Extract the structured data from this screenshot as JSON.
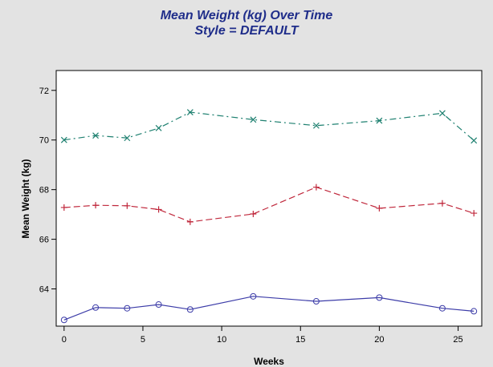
{
  "chart_data": {
    "type": "line",
    "title": [
      "Mean Weight (kg) Over Time",
      "Style = DEFAULT"
    ],
    "xlabel": "Weeks",
    "ylabel": "Mean Weight (kg)",
    "xlim": [
      -0.5,
      26.5
    ],
    "ylim": [
      62.5,
      72.8
    ],
    "xticks": [
      0,
      5,
      10,
      15,
      20,
      25
    ],
    "yticks": [
      64,
      66,
      68,
      70,
      72
    ],
    "grid": false,
    "legend": "none",
    "series": [
      {
        "marker": "circle",
        "line_style": "solid",
        "color": "#3c3ca8",
        "x": [
          0,
          2,
          4,
          6,
          8,
          12,
          16,
          20,
          24,
          26
        ],
        "y": [
          62.75,
          63.25,
          63.22,
          63.37,
          63.17,
          63.7,
          63.5,
          63.65,
          63.22,
          63.1
        ]
      },
      {
        "marker": "plus",
        "line_style": "dashed",
        "color": "#c0283c",
        "x": [
          0,
          2,
          4,
          6,
          8,
          12,
          16,
          20,
          24,
          26
        ],
        "y": [
          67.28,
          67.37,
          67.35,
          67.2,
          66.7,
          67.02,
          68.1,
          67.25,
          67.45,
          67.05
        ]
      },
      {
        "marker": "x",
        "line_style": "dash-dot",
        "color": "#1e8070",
        "x": [
          0,
          2,
          4,
          6,
          8,
          12,
          16,
          20,
          24,
          26
        ],
        "y": [
          70.0,
          70.18,
          70.08,
          70.48,
          71.12,
          70.82,
          70.58,
          70.78,
          71.08,
          69.98
        ]
      }
    ]
  }
}
